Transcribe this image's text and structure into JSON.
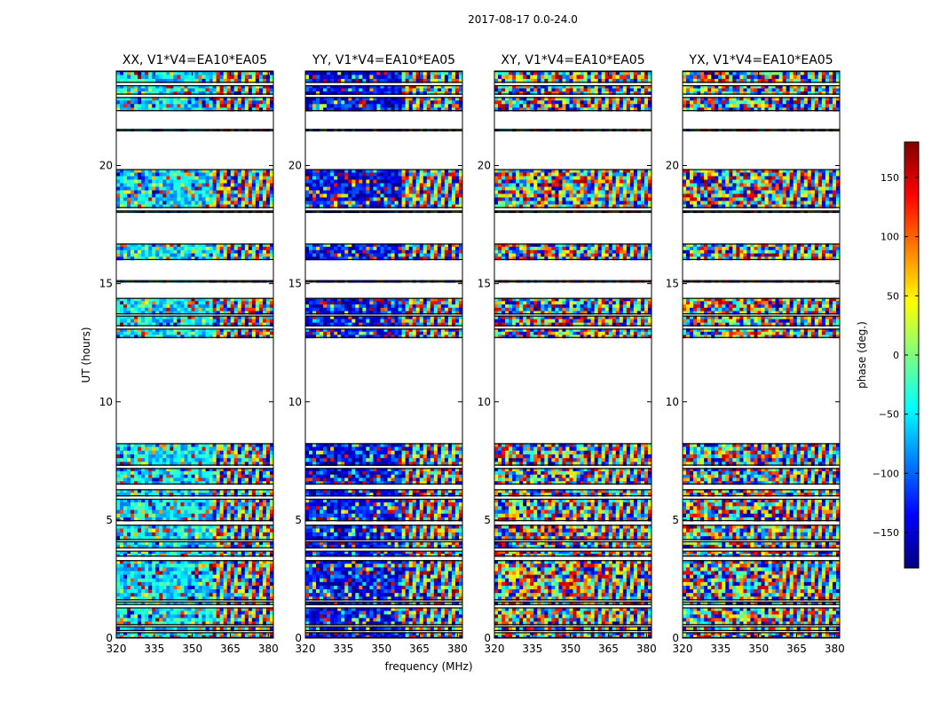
{
  "chart_data": {
    "type": "heatmap",
    "suptitle": "2017-08-17 0.0-24.0",
    "xlabel": "frequency (MHz)",
    "ylabel": "UT (hours)",
    "xlim": [
      320,
      382
    ],
    "ylim": [
      0,
      24
    ],
    "xticks": [
      320,
      335,
      350,
      365,
      380
    ],
    "yticks": [
      0,
      5,
      10,
      15,
      20
    ],
    "colorbar": {
      "label": "phase (deg.)",
      "range": [
        -180,
        180
      ],
      "ticks": [
        150,
        100,
        50,
        0,
        -50,
        -100,
        -150
      ],
      "tick_labels": [
        "150",
        "100",
        "50",
        "0",
        "−50",
        "−100",
        "−150"
      ],
      "colormap": "jet",
      "colors": [
        "#00007f",
        "#0000ff",
        "#007fff",
        "#00ffff",
        "#7fff7f",
        "#ffff00",
        "#ff7f00",
        "#ff0000",
        "#7f0000"
      ]
    },
    "time_blocks_hours": [
      [
        0.0,
        0.25
      ],
      [
        0.3,
        0.5
      ],
      [
        0.55,
        1.3
      ],
      [
        1.4,
        1.55
      ],
      [
        1.6,
        3.3
      ],
      [
        3.45,
        3.7
      ],
      [
        3.8,
        4.1
      ],
      [
        4.15,
        4.8
      ],
      [
        4.95,
        5.9
      ],
      [
        6.0,
        6.3
      ],
      [
        6.5,
        7.2
      ],
      [
        7.3,
        8.25
      ],
      [
        12.7,
        13.1
      ],
      [
        13.2,
        13.65
      ],
      [
        13.7,
        14.4
      ],
      [
        15.05,
        15.15
      ],
      [
        16.0,
        16.7
      ],
      [
        18.0,
        18.1
      ],
      [
        18.2,
        19.85
      ],
      [
        21.45,
        21.55
      ],
      [
        22.3,
        22.9
      ],
      [
        23.0,
        23.4
      ],
      [
        23.5,
        24.0
      ]
    ],
    "panels": [
      {
        "title": "XX, V1*V4=EA10*EA05",
        "polarization": "XX",
        "baseline": "V1*V4=EA10*EA05"
      },
      {
        "title": "YY, V1*V4=EA10*EA05",
        "polarization": "YY",
        "baseline": "V1*V4=EA10*EA05"
      },
      {
        "title": "XY, V1*V4=EA10*EA05",
        "polarization": "XY",
        "baseline": "V1*V4=EA10*EA05"
      },
      {
        "title": "YX, V1*V4=EA10*EA05",
        "polarization": "YX",
        "baseline": "V1*V4=EA10*EA05"
      }
    ]
  }
}
